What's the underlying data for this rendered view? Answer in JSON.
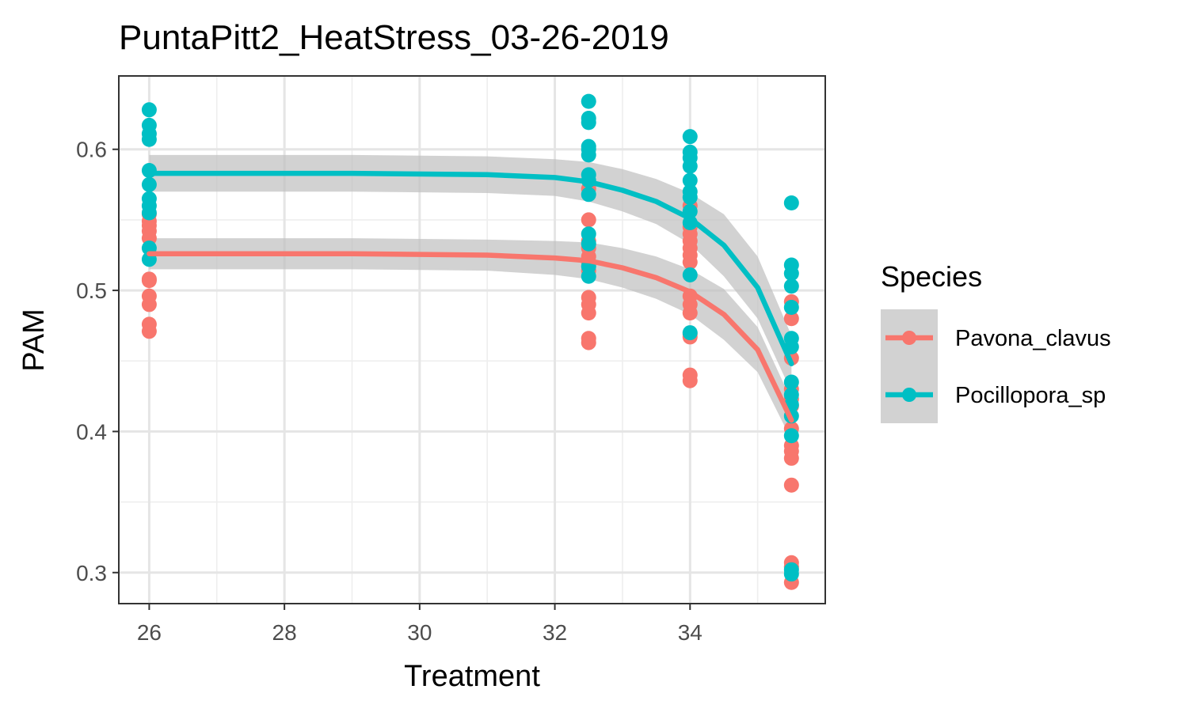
{
  "chart_data": {
    "type": "scatter",
    "title": "PuntaPitt2_HeatStress_03-26-2019",
    "xlabel": "Treatment",
    "ylabel": "PAM",
    "xlim": [
      25.55,
      36.0
    ],
    "ylim": [
      0.278,
      0.652
    ],
    "x_ticks": [
      26,
      28,
      30,
      32,
      34
    ],
    "x_tick_labels": [
      "26",
      "28",
      "30",
      "32",
      "34"
    ],
    "y_ticks": [
      0.3,
      0.4,
      0.5,
      0.6
    ],
    "y_tick_labels": [
      "0.3",
      "0.4",
      "0.5",
      "0.6"
    ],
    "grid": true,
    "legend": {
      "title": "Species",
      "position": "right"
    },
    "series": [
      {
        "name": "Pavona_clavus",
        "color": "#F8766D",
        "points": [
          [
            26,
            0.471
          ],
          [
            26,
            0.476
          ],
          [
            26,
            0.49
          ],
          [
            26,
            0.496
          ],
          [
            26,
            0.507
          ],
          [
            26,
            0.508
          ],
          [
            26,
            0.537
          ],
          [
            26,
            0.542
          ],
          [
            26,
            0.546
          ],
          [
            26,
            0.549
          ],
          [
            26,
            0.554
          ],
          [
            32.5,
            0.463
          ],
          [
            32.5,
            0.466
          ],
          [
            32.5,
            0.484
          ],
          [
            32.5,
            0.49
          ],
          [
            32.5,
            0.495
          ],
          [
            32.5,
            0.514
          ],
          [
            32.5,
            0.52
          ],
          [
            32.5,
            0.524
          ],
          [
            32.5,
            0.53
          ],
          [
            32.5,
            0.535
          ],
          [
            32.5,
            0.55
          ],
          [
            32.5,
            0.572
          ],
          [
            34,
            0.436
          ],
          [
            34,
            0.44
          ],
          [
            34,
            0.467
          ],
          [
            34,
            0.469
          ],
          [
            34,
            0.484
          ],
          [
            34,
            0.49
          ],
          [
            34,
            0.496
          ],
          [
            34,
            0.52
          ],
          [
            34,
            0.525
          ],
          [
            34,
            0.53
          ],
          [
            34,
            0.535
          ],
          [
            34,
            0.54
          ],
          [
            34,
            0.545
          ],
          [
            34,
            0.56
          ],
          [
            35.5,
            0.293
          ],
          [
            35.5,
            0.304
          ],
          [
            35.5,
            0.307
          ],
          [
            35.5,
            0.362
          ],
          [
            35.5,
            0.381
          ],
          [
            35.5,
            0.386
          ],
          [
            35.5,
            0.39
          ],
          [
            35.5,
            0.402
          ],
          [
            35.5,
            0.418
          ],
          [
            35.5,
            0.423
          ],
          [
            35.5,
            0.43
          ],
          [
            35.5,
            0.452
          ],
          [
            35.5,
            0.48
          ],
          [
            35.5,
            0.492
          ]
        ],
        "fit": [
          [
            26,
            0.526
          ],
          [
            29,
            0.526
          ],
          [
            31,
            0.525
          ],
          [
            32,
            0.523
          ],
          [
            32.5,
            0.521
          ],
          [
            33,
            0.516
          ],
          [
            33.5,
            0.509
          ],
          [
            34,
            0.499
          ],
          [
            34.5,
            0.483
          ],
          [
            35,
            0.458
          ],
          [
            35.5,
            0.408
          ]
        ],
        "ci_width": [
          0.011,
          0.011,
          0.011,
          0.012,
          0.013,
          0.014,
          0.015,
          0.016,
          0.018,
          0.016,
          0.014
        ]
      },
      {
        "name": "Pocillopora_sp",
        "color": "#00BFC4",
        "points": [
          [
            26,
            0.522
          ],
          [
            26,
            0.53
          ],
          [
            26,
            0.555
          ],
          [
            26,
            0.56
          ],
          [
            26,
            0.565
          ],
          [
            26,
            0.575
          ],
          [
            26,
            0.585
          ],
          [
            26,
            0.607
          ],
          [
            26,
            0.611
          ],
          [
            26,
            0.617
          ],
          [
            26,
            0.628
          ],
          [
            32.5,
            0.51
          ],
          [
            32.5,
            0.517
          ],
          [
            32.5,
            0.533
          ],
          [
            32.5,
            0.54
          ],
          [
            32.5,
            0.568
          ],
          [
            32.5,
            0.578
          ],
          [
            32.5,
            0.582
          ],
          [
            32.5,
            0.596
          ],
          [
            32.5,
            0.6
          ],
          [
            32.5,
            0.602
          ],
          [
            32.5,
            0.619
          ],
          [
            32.5,
            0.622
          ],
          [
            32.5,
            0.634
          ],
          [
            34,
            0.47
          ],
          [
            34,
            0.511
          ],
          [
            34,
            0.548
          ],
          [
            34,
            0.556
          ],
          [
            34,
            0.566
          ],
          [
            34,
            0.57
          ],
          [
            34,
            0.578
          ],
          [
            34,
            0.588
          ],
          [
            34,
            0.594
          ],
          [
            34,
            0.598
          ],
          [
            34,
            0.609
          ],
          [
            35.5,
            0.299
          ],
          [
            35.5,
            0.302
          ],
          [
            35.5,
            0.397
          ],
          [
            35.5,
            0.411
          ],
          [
            35.5,
            0.419
          ],
          [
            35.5,
            0.426
          ],
          [
            35.5,
            0.435
          ],
          [
            35.5,
            0.46
          ],
          [
            35.5,
            0.466
          ],
          [
            35.5,
            0.488
          ],
          [
            35.5,
            0.503
          ],
          [
            35.5,
            0.512
          ],
          [
            35.5,
            0.518
          ],
          [
            35.5,
            0.562
          ]
        ],
        "fit": [
          [
            26,
            0.583
          ],
          [
            29,
            0.583
          ],
          [
            31,
            0.582
          ],
          [
            32,
            0.58
          ],
          [
            32.5,
            0.577
          ],
          [
            33,
            0.571
          ],
          [
            33.5,
            0.563
          ],
          [
            34,
            0.551
          ],
          [
            34.5,
            0.532
          ],
          [
            35,
            0.502
          ],
          [
            35.5,
            0.448
          ]
        ],
        "ci_width": [
          0.013,
          0.013,
          0.013,
          0.013,
          0.014,
          0.015,
          0.016,
          0.018,
          0.022,
          0.022,
          0.02
        ]
      }
    ],
    "confidence_band_color": "#bfbfbf"
  }
}
